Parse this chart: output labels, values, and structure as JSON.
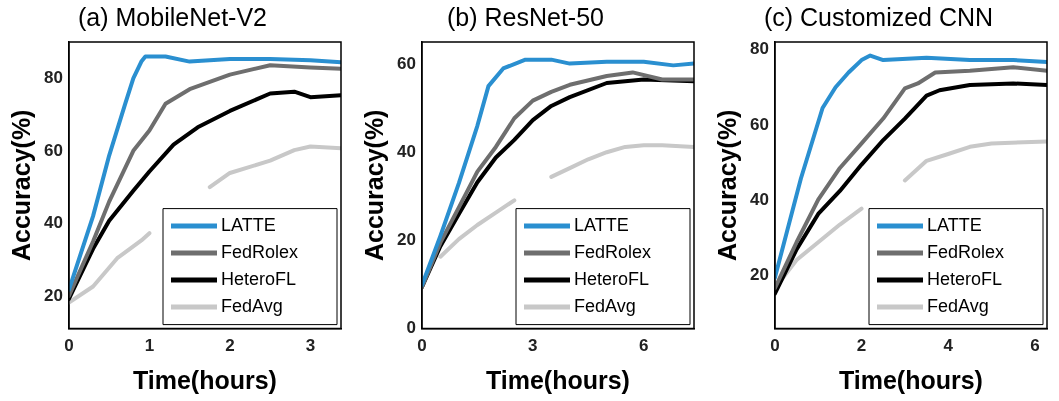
{
  "chart_data": [
    {
      "type": "line",
      "title": "(a) MobileNet-V2",
      "xlabel": "Time(hours)",
      "ylabel": "Accuracy(%)",
      "xlim": [
        0,
        3.38
      ],
      "ylim": [
        11,
        90
      ],
      "xticks": [
        0,
        1,
        2,
        3
      ],
      "yticks": [
        20,
        40,
        60,
        80
      ],
      "legend": "bottom right",
      "series": [
        {
          "name": "LATTE",
          "color": "#2a8fd0",
          "x": [
            0,
            0.3,
            0.5,
            0.7,
            0.8,
            0.9,
            0.95,
            1.2,
            1.5,
            2.0,
            2.5,
            3.0,
            3.38
          ],
          "values": [
            21.7,
            42,
            58.7,
            73,
            80,
            84.6,
            86,
            86,
            84.6,
            85.3,
            85.3,
            85,
            84.4
          ]
        },
        {
          "name": "FedRolex",
          "color": "#6e6e6e",
          "x": [
            0,
            0.3,
            0.5,
            0.8,
            1.0,
            1.2,
            1.5,
            2.0,
            2.5,
            3.0,
            3.38
          ],
          "values": [
            20,
            35,
            46,
            60,
            65.6,
            73,
            77,
            81,
            83.6,
            83,
            82.6
          ]
        },
        {
          "name": "HeteroFL",
          "color": "#000000",
          "x": [
            0,
            0.3,
            0.5,
            0.8,
            1.0,
            1.3,
            1.6,
            2.0,
            2.5,
            2.8,
            3.0,
            3.38
          ],
          "values": [
            19.2,
            33,
            40.7,
            49,
            54.3,
            61.7,
            66.5,
            71,
            75.8,
            76.3,
            74.8,
            75.3
          ]
        },
        {
          "name": "FedAvg",
          "color": "#c8c8c8",
          "x": [
            0,
            0.3,
            0.6,
            0.9,
            1.0,
            1.3,
            1.75,
            2.0,
            2.5,
            2.8,
            3.0,
            3.38
          ],
          "values": [
            18.2,
            22.6,
            30.4,
            35.3,
            37.3,
            null,
            50,
            53.9,
            57.3,
            60.2,
            61.2,
            60.7
          ]
        }
      ]
    },
    {
      "type": "line",
      "title": "(b) ResNet-50",
      "xlabel": "Time(hours)",
      "ylabel": "Accuracy(%)",
      "xlim": [
        0,
        7.36
      ],
      "ylim": [
        0,
        65
      ],
      "xticks": [
        0,
        3,
        6
      ],
      "yticks": [
        0,
        20,
        40,
        60
      ],
      "legend": "bottom right",
      "series": [
        {
          "name": "LATTE",
          "color": "#2a8fd0",
          "x": [
            0,
            0.5,
            1.0,
            1.5,
            1.8,
            2.2,
            2.8,
            3.5,
            4.0,
            5,
            6,
            6.8,
            7.36
          ],
          "values": [
            9.8,
            21,
            33,
            46,
            55,
            59,
            61,
            61,
            60.1,
            60.5,
            60.5,
            59.7,
            60.1
          ]
        },
        {
          "name": "FedRolex",
          "color": "#6e6e6e",
          "x": [
            0,
            0.5,
            1.0,
            1.5,
            2.0,
            2.5,
            3,
            3.5,
            4,
            5,
            5.7,
            6.5,
            7.36
          ],
          "values": [
            9.4,
            19.5,
            27.5,
            35.6,
            41.2,
            47.7,
            51.7,
            53.7,
            55.3,
            57.3,
            58.1,
            56.5,
            56.5
          ]
        },
        {
          "name": "HeteroFL",
          "color": "#000000",
          "x": [
            0,
            0.5,
            1.0,
            1.5,
            2.0,
            2.5,
            3,
            3.5,
            4,
            5,
            6,
            7.36
          ],
          "values": [
            9.4,
            18.7,
            26,
            33.2,
            38.8,
            42.8,
            47.3,
            50.5,
            52.5,
            55.7,
            56.5,
            56.1
          ]
        },
        {
          "name": "FedAvg",
          "color": "#c8c8c8",
          "x": [
            0.5,
            1.0,
            1.5,
            2.0,
            2.5,
            2.8,
            3.5,
            4,
            4.5,
            5,
            5.5,
            6,
            6.5,
            7.36
          ],
          "values": [
            16.3,
            20.3,
            23.5,
            26.3,
            29.1,
            null,
            34.4,
            36.4,
            38.4,
            40,
            41.2,
            41.6,
            41.6,
            41.2
          ]
        }
      ]
    },
    {
      "type": "line",
      "title": "(c) Customized CNN",
      "xlabel": "Time(hours)",
      "ylabel": "Accuracy(%)",
      "xlim": [
        0,
        6.28
      ],
      "ylim": [
        6,
        82
      ],
      "xticks": [
        0,
        2,
        4,
        6
      ],
      "yticks": [
        20,
        40,
        60,
        80
      ],
      "legend": "bottom right",
      "series": [
        {
          "name": "LATTE",
          "color": "#2a8fd0",
          "x": [
            0,
            0.3,
            0.6,
            0.9,
            1.1,
            1.4,
            1.7,
            2.0,
            2.2,
            2.5,
            3.5,
            4.5,
            5.5,
            6.28
          ],
          "values": [
            19.5,
            32.7,
            45.8,
            57,
            64.5,
            70,
            73.9,
            77.2,
            78.4,
            77.2,
            77.8,
            77.2,
            77.2,
            76.7
          ]
        },
        {
          "name": "FedRolex",
          "color": "#6e6e6e",
          "x": [
            0,
            0.5,
            1.0,
            1.5,
            2.0,
            2.5,
            3.0,
            3.3,
            3.7,
            4.5,
            5.5,
            6.28
          ],
          "values": [
            16.7,
            28.9,
            40.2,
            48.6,
            55.1,
            61.7,
            69.7,
            71,
            73.9,
            74.4,
            75.3,
            74.4
          ]
        },
        {
          "name": "HeteroFL",
          "color": "#000000",
          "x": [
            0,
            0.5,
            1.0,
            1.5,
            2.0,
            2.5,
            3.0,
            3.5,
            3.8,
            4.5,
            5.5,
            6.28
          ],
          "values": [
            15.3,
            27,
            36.4,
            42.5,
            49.5,
            56,
            61.7,
            67.8,
            69.2,
            70.6,
            71,
            70.6
          ]
        },
        {
          "name": "FedAvg",
          "color": "#c8c8c8",
          "x": [
            0,
            0.5,
            1.0,
            1.5,
            2.0,
            2.5,
            3.0,
            3.5,
            4.0,
            4.5,
            5.0,
            6.28
          ],
          "values": [
            16.7,
            24.2,
            28.9,
            33.6,
            37.8,
            null,
            45.3,
            50.5,
            52.3,
            54.2,
            55.1,
            55.6
          ]
        }
      ]
    }
  ]
}
